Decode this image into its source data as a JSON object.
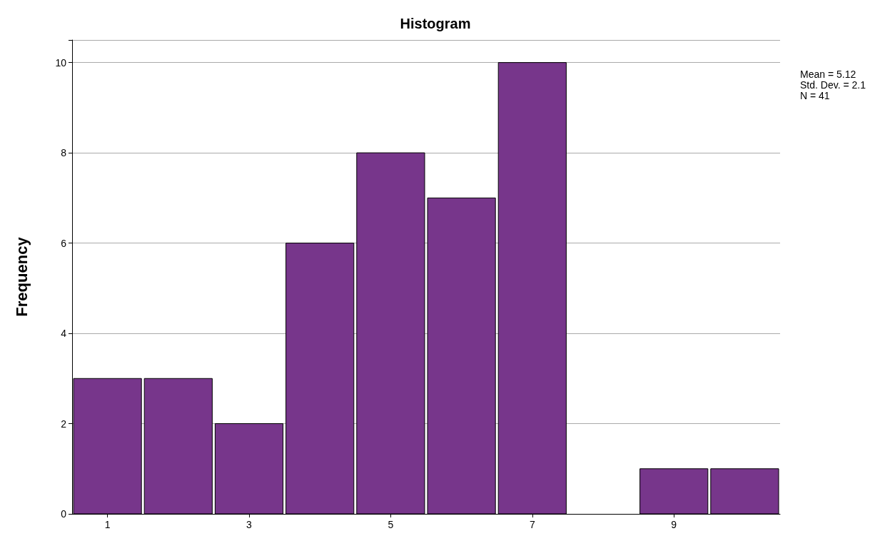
{
  "chart_data": {
    "type": "histogram",
    "title": "Histogram",
    "ylabel": "Frequency",
    "bins": [
      0.5,
      1.5,
      2.5,
      3.5,
      4.5,
      5.5,
      6.5,
      7.5,
      8.5,
      9.5,
      10.5
    ],
    "values": [
      3,
      3,
      2,
      6,
      8,
      7,
      10,
      0,
      1,
      1
    ],
    "color": "#77368b",
    "xlim": [
      0.5,
      10.5
    ],
    "xticks": [
      1,
      3,
      5,
      7,
      9
    ],
    "ylim": [
      0,
      10.5
    ],
    "yticks": [
      0,
      2,
      4,
      6,
      8,
      10
    ],
    "grid": "y",
    "annotations": [
      "Mean = 5.12",
      "Std. Dev. = 2.1",
      "N = 41"
    ]
  }
}
